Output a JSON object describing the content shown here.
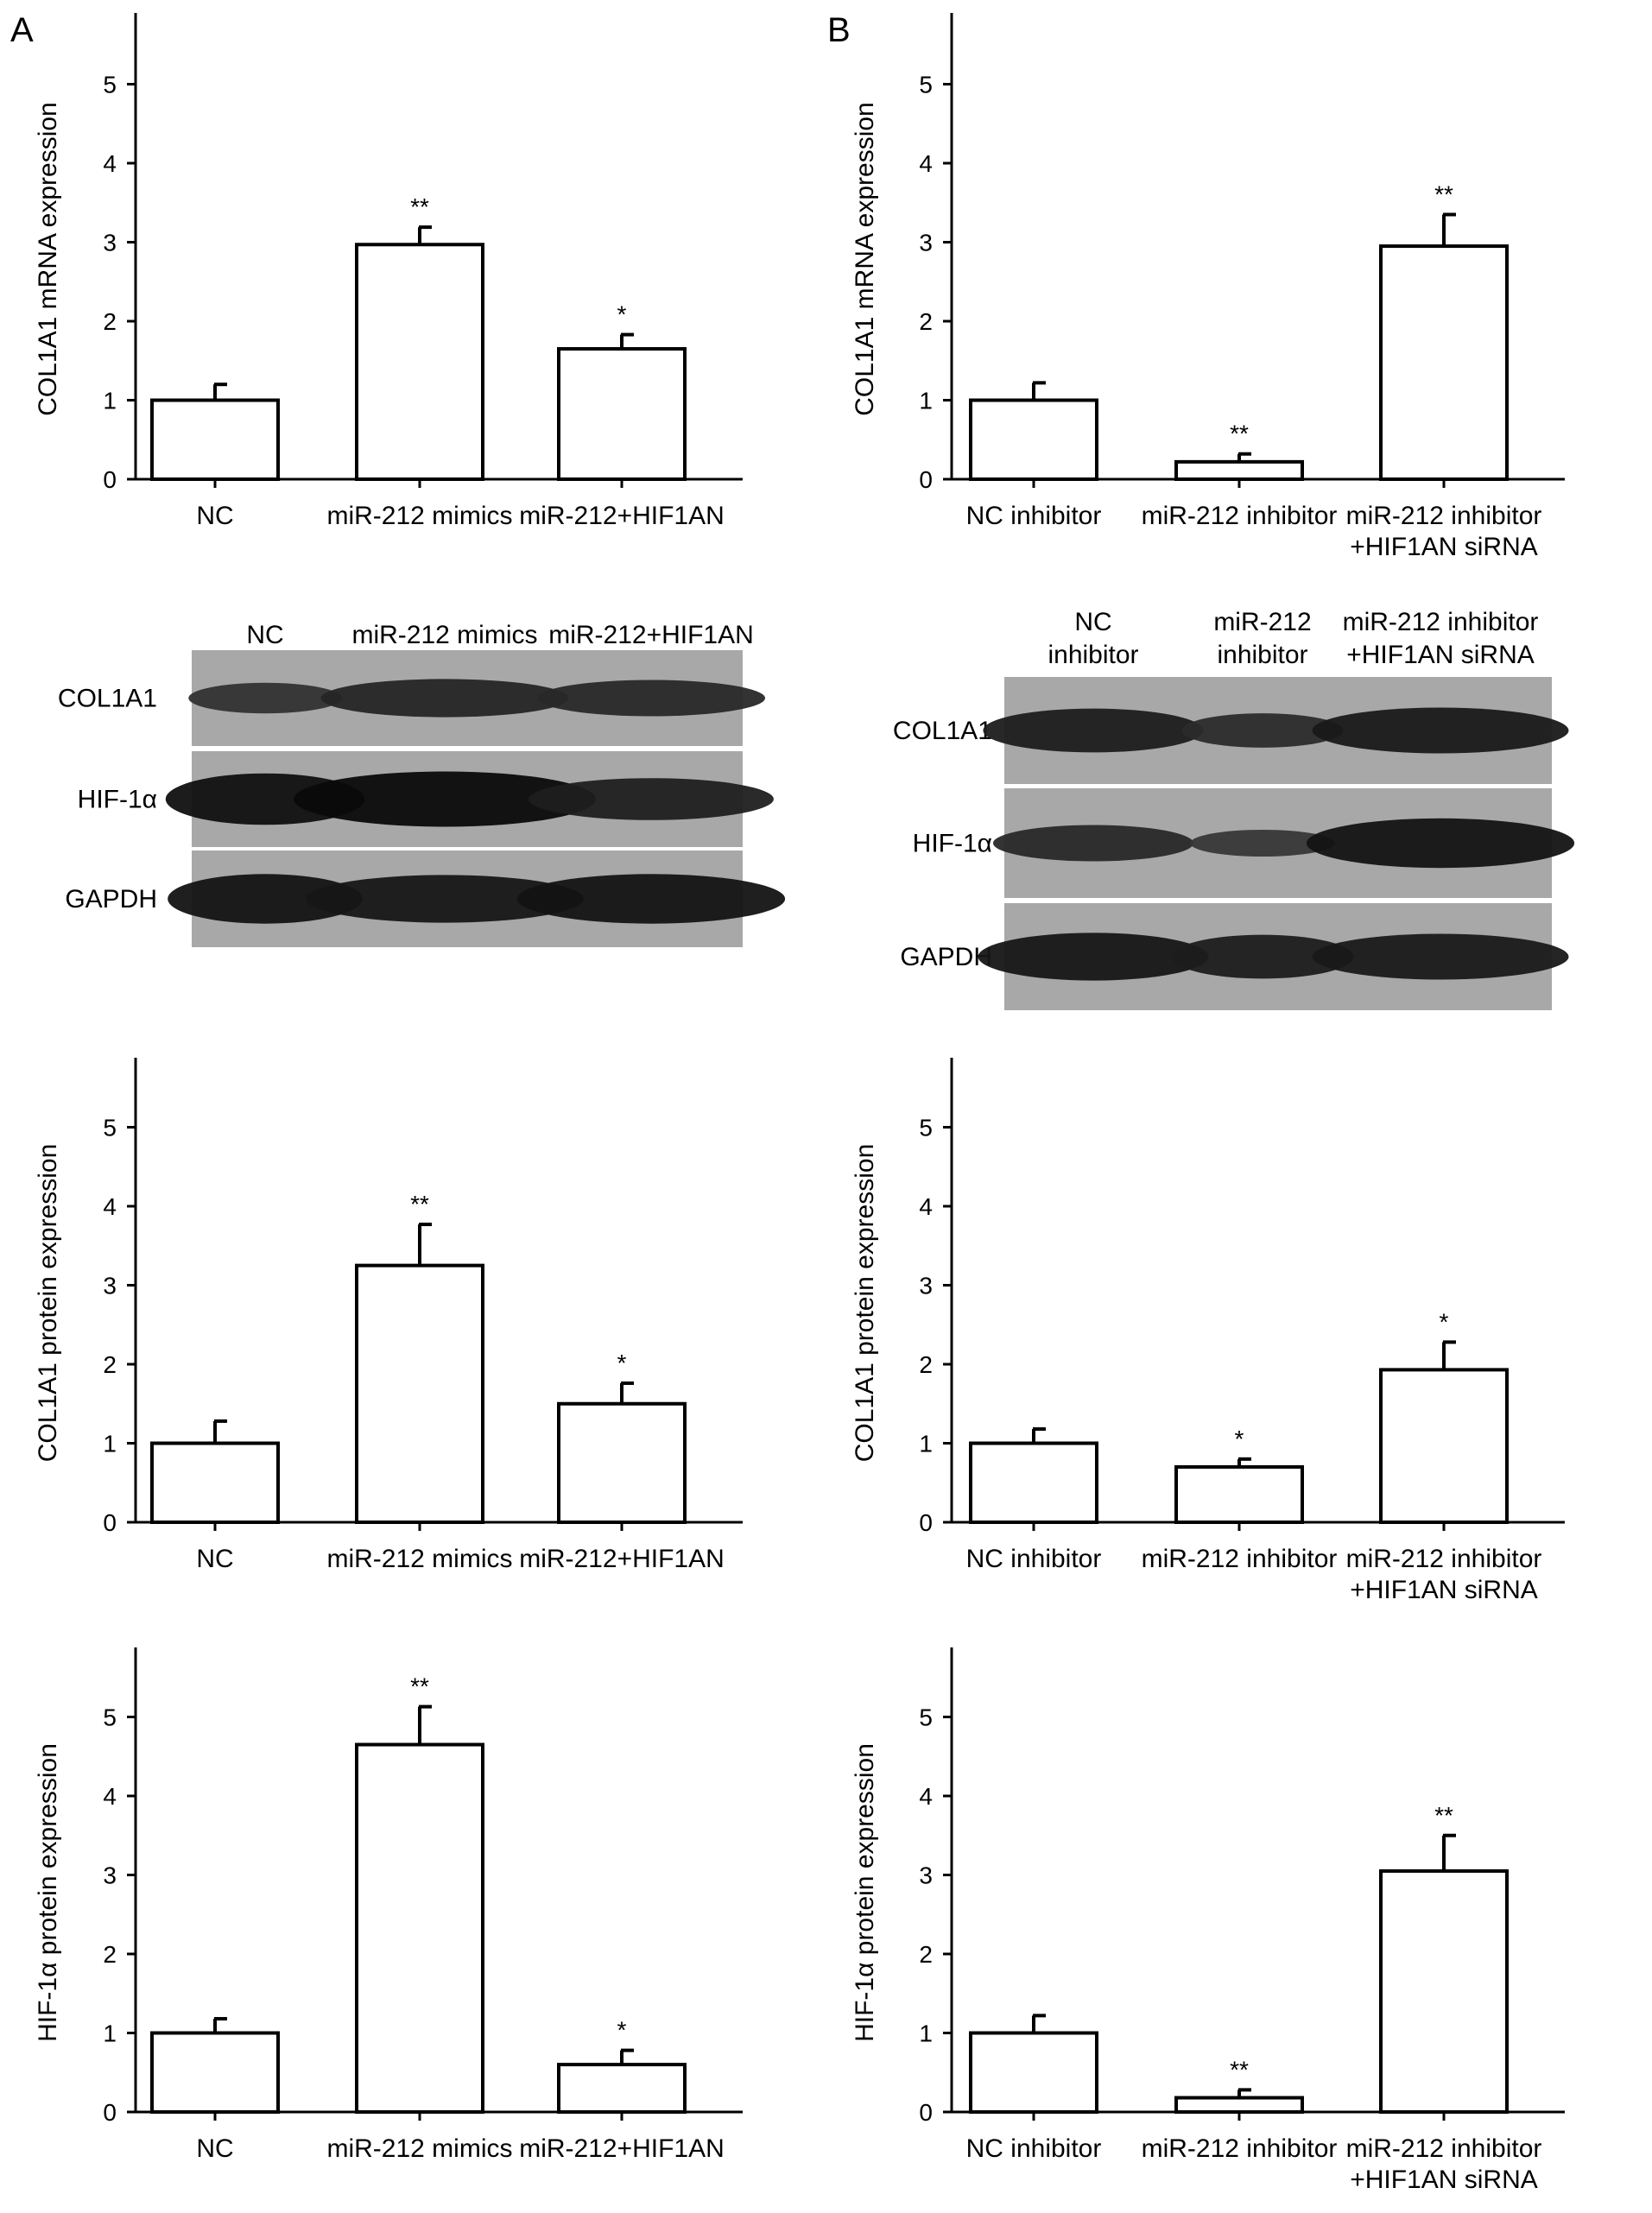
{
  "panels": {
    "a": {
      "label": "A"
    },
    "b": {
      "label": "B"
    }
  },
  "blots": [
    {
      "id": "blot-a",
      "lanes": [
        [
          "NC"
        ],
        [
          "miR-212 mimics"
        ],
        [
          "miR-212+HIF1AN"
        ]
      ],
      "rows": [
        "COL1A1",
        "HIF-1α",
        "GAPDH"
      ],
      "intensity": [
        [
          0.35,
          0.55,
          0.5
        ],
        [
          0.9,
          1.0,
          0.65
        ],
        [
          0.85,
          0.8,
          0.85
        ]
      ]
    },
    {
      "id": "blot-b",
      "lanes": [
        [
          "NC",
          "inhibitor"
        ],
        [
          "miR-212",
          "inhibitor"
        ],
        [
          "miR-212 inhibitor",
          "+HIF1AN siRNA"
        ]
      ],
      "rows": [
        "COL1A1",
        "HIF-1α",
        "GAPDH"
      ],
      "intensity": [
        [
          0.7,
          0.45,
          0.75
        ],
        [
          0.5,
          0.25,
          0.85
        ],
        [
          0.8,
          0.7,
          0.75
        ]
      ]
    }
  ],
  "chart_data": [
    {
      "id": "chart-a1",
      "type": "bar",
      "ylabel": "COL1A1 mRNA expression",
      "ylim": [
        0,
        5.8
      ],
      "yticks": [
        "0",
        "1",
        "2",
        "3",
        "4",
        "5"
      ],
      "categories": [
        [
          "NC"
        ],
        [
          "miR-212 mimics"
        ],
        [
          "miR-212+HIF1AN"
        ]
      ],
      "values": [
        1.0,
        2.97,
        1.65
      ],
      "errors": [
        0.2,
        0.22,
        0.18
      ],
      "significance": [
        "",
        "**",
        "*"
      ]
    },
    {
      "id": "chart-b1",
      "type": "bar",
      "ylabel": "COL1A1 mRNA expression",
      "ylim": [
        0,
        5.8
      ],
      "yticks": [
        "0",
        "1",
        "2",
        "3",
        "4",
        "5"
      ],
      "categories": [
        [
          "NC inhibitor"
        ],
        [
          "miR-212 inhibitor"
        ],
        [
          "miR-212 inhibitor",
          "+HIF1AN siRNA"
        ]
      ],
      "values": [
        1.0,
        0.22,
        2.95
      ],
      "errors": [
        0.22,
        0.1,
        0.4
      ],
      "significance": [
        "",
        "**",
        "**"
      ]
    },
    {
      "id": "chart-a2",
      "type": "bar",
      "ylabel": "COL1A1 protein expression",
      "ylim": [
        0,
        5.8
      ],
      "yticks": [
        "0",
        "1",
        "2",
        "3",
        "4",
        "5"
      ],
      "categories": [
        [
          "NC"
        ],
        [
          "miR-212 mimics"
        ],
        [
          "miR-212+HIF1AN"
        ]
      ],
      "values": [
        1.0,
        3.25,
        1.5
      ],
      "errors": [
        0.28,
        0.52,
        0.26
      ],
      "significance": [
        "",
        "**",
        "*"
      ]
    },
    {
      "id": "chart-b2",
      "type": "bar",
      "ylabel": "COL1A1 protein expression",
      "ylim": [
        0,
        5.8
      ],
      "yticks": [
        "0",
        "1",
        "2",
        "3",
        "4",
        "5"
      ],
      "categories": [
        [
          "NC inhibitor"
        ],
        [
          "miR-212 inhibitor"
        ],
        [
          "miR-212 inhibitor",
          "+HIF1AN siRNA"
        ]
      ],
      "values": [
        1.0,
        0.7,
        1.93
      ],
      "errors": [
        0.18,
        0.1,
        0.35
      ],
      "significance": [
        "",
        "*",
        "*"
      ]
    },
    {
      "id": "chart-a3",
      "type": "bar",
      "ylabel": "HIF-1α protein expression",
      "ylim": [
        0,
        5.8
      ],
      "yticks": [
        "0",
        "1",
        "2",
        "3",
        "4",
        "5"
      ],
      "categories": [
        [
          "NC"
        ],
        [
          "miR-212 mimics"
        ],
        [
          "miR-212+HIF1AN"
        ]
      ],
      "values": [
        1.0,
        4.65,
        0.6
      ],
      "errors": [
        0.18,
        0.48,
        0.18
      ],
      "significance": [
        "",
        "**",
        "*"
      ]
    },
    {
      "id": "chart-b3",
      "type": "bar",
      "ylabel": "HIF-1α protein expression",
      "ylim": [
        0,
        5.8
      ],
      "yticks": [
        "0",
        "1",
        "2",
        "3",
        "4",
        "5"
      ],
      "categories": [
        [
          "NC inhibitor"
        ],
        [
          "miR-212 inhibitor"
        ],
        [
          "miR-212 inhibitor",
          "+HIF1AN siRNA"
        ]
      ],
      "values": [
        1.0,
        0.18,
        3.05
      ],
      "errors": [
        0.22,
        0.1,
        0.45
      ],
      "significance": [
        "",
        "**",
        "**"
      ]
    }
  ]
}
